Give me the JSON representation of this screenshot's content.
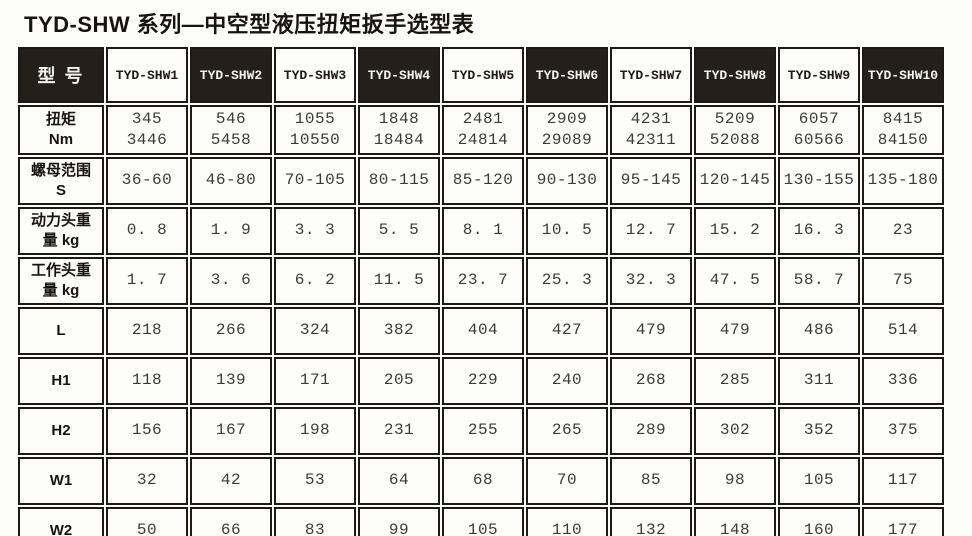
{
  "title": "TYD-SHW 系列—中空型液压扭矩扳手选型表",
  "colors": {
    "header_black": "#242019",
    "border": "#1d1a16",
    "value_text": "#3b3b3b",
    "background": "#fcfcfa"
  },
  "table": {
    "corner_label": "型  号",
    "models": [
      {
        "label": "TYD-SHW1",
        "dark": false
      },
      {
        "label": "TYD-SHW2",
        "dark": true
      },
      {
        "label": "TYD-SHW3",
        "dark": false
      },
      {
        "label": "TYD-SHW4",
        "dark": true
      },
      {
        "label": "TYD-SHW5",
        "dark": false
      },
      {
        "label": "TYD-SHW6",
        "dark": true
      },
      {
        "label": "TYD-SHW7",
        "dark": false
      },
      {
        "label": "TYD-SHW8",
        "dark": true
      },
      {
        "label": "TYD-SHW9",
        "dark": false
      },
      {
        "label": "TYD-SHW10",
        "dark": true
      }
    ],
    "rows": [
      {
        "label": "扭矩\nNm",
        "values": [
          "345\n3446",
          "546\n5458",
          "1055\n10550",
          "1848\n18484",
          "2481\n24814",
          "2909\n29089",
          "4231\n42311",
          "5209\n52088",
          "6057\n60566",
          "8415\n84150"
        ]
      },
      {
        "label": "螺母范围\nS",
        "values": [
          "36-60",
          "46-80",
          "70-105",
          "80-115",
          "85-120",
          "90-130",
          "95-145",
          "120-145",
          "130-155",
          "135-180"
        ]
      },
      {
        "label": "动力头重\n量 kg",
        "values": [
          "0. 8",
          "1. 9",
          "3. 3",
          "5. 5",
          "8. 1",
          "10. 5",
          "12. 7",
          "15. 2",
          "16. 3",
          "23"
        ]
      },
      {
        "label": "工作头重\n量 kg",
        "values": [
          "1. 7",
          "3. 6",
          "6. 2",
          "11. 5",
          "23. 7",
          "25. 3",
          "32. 3",
          "47. 5",
          "58. 7",
          "75"
        ]
      },
      {
        "label": "L",
        "values": [
          "218",
          "266",
          "324",
          "382",
          "404",
          "427",
          "479",
          "479",
          "486",
          "514"
        ]
      },
      {
        "label": "H1",
        "values": [
          "118",
          "139",
          "171",
          "205",
          "229",
          "240",
          "268",
          "285",
          "311",
          "336"
        ]
      },
      {
        "label": "H2",
        "values": [
          "156",
          "167",
          "198",
          "231",
          "255",
          "265",
          "289",
          "302",
          "352",
          "375"
        ]
      },
      {
        "label": "W1",
        "values": [
          "32",
          "42",
          "53",
          "64",
          "68",
          "70",
          "85",
          "98",
          "105",
          "117"
        ]
      },
      {
        "label": "W2",
        "values": [
          "50",
          "66",
          "83",
          "99",
          "105",
          "110",
          "132",
          "148",
          "160",
          "177"
        ]
      }
    ]
  }
}
